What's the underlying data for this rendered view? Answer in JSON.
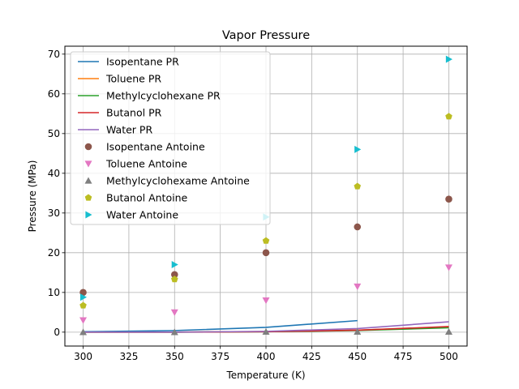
{
  "chart_data": {
    "type": "line",
    "title": "Vapor Pressure",
    "xlabel": "Temperature (K)",
    "ylabel": "Pressure (MPa)",
    "xlim": [
      290,
      510
    ],
    "ylim": [
      -3.5,
      72
    ],
    "xticks": [
      300,
      325,
      350,
      375,
      400,
      425,
      450,
      475,
      500
    ],
    "yticks": [
      0,
      10,
      20,
      30,
      40,
      50,
      60,
      70
    ],
    "grid": true,
    "legend_position": "top-left",
    "series": [
      {
        "name": "Isopentane PR",
        "kind": "line",
        "color": "#1f77b4",
        "x": [
          300,
          350,
          400,
          450
        ],
        "y": [
          0.1,
          0.4,
          1.2,
          2.9
        ]
      },
      {
        "name": "Toluene PR",
        "kind": "line",
        "color": "#ff7f0e",
        "x": [
          300,
          350,
          400,
          450,
          500
        ],
        "y": [
          0.0,
          0.0,
          0.15,
          0.5,
          1.3
        ]
      },
      {
        "name": "Methylcyclohexane PR",
        "kind": "line",
        "color": "#2ca02c",
        "x": [
          300,
          350,
          400,
          450,
          500
        ],
        "y": [
          0.0,
          0.0,
          0.1,
          0.4,
          1.1
        ]
      },
      {
        "name": "Butanol PR",
        "kind": "line",
        "color": "#d62728",
        "x": [
          300,
          350,
          400,
          450,
          500
        ],
        "y": [
          0.0,
          0.0,
          0.1,
          0.5,
          1.4
        ]
      },
      {
        "name": "Water PR",
        "kind": "line",
        "color": "#9467bd",
        "x": [
          300,
          350,
          400,
          450,
          500
        ],
        "y": [
          0.0,
          0.0,
          0.2,
          0.9,
          2.6
        ]
      },
      {
        "name": "Isopentane Antoine",
        "kind": "scatter",
        "marker": "circle",
        "color": "#8c564b",
        "x": [
          300,
          350,
          400,
          450,
          500
        ],
        "y": [
          10.0,
          14.5,
          20.0,
          26.5,
          33.5
        ]
      },
      {
        "name": "Toluene Antoine",
        "kind": "scatter",
        "marker": "triangle-down",
        "color": "#e377c2",
        "x": [
          300,
          350,
          400,
          450,
          500
        ],
        "y": [
          3.0,
          5.0,
          8.0,
          11.5,
          16.3
        ]
      },
      {
        "name": "Methylcyclohexame Antoine",
        "kind": "scatter",
        "marker": "triangle-up",
        "color": "#7f7f7f",
        "x": [
          300,
          350,
          400,
          450,
          500
        ],
        "y": [
          0.0,
          0.0,
          0.1,
          0.1,
          0.1
        ]
      },
      {
        "name": "Butanol Antoine",
        "kind": "scatter",
        "marker": "pentagon",
        "color": "#bcbd22",
        "x": [
          300,
          350,
          400,
          450,
          500
        ],
        "y": [
          6.7,
          13.3,
          23.0,
          36.7,
          54.3
        ]
      },
      {
        "name": "Water Antoine",
        "kind": "scatter",
        "marker": "triangle-right",
        "color": "#17becf",
        "x": [
          300,
          350,
          400,
          450,
          500
        ],
        "y": [
          8.8,
          17.0,
          29.0,
          46.0,
          68.7
        ]
      }
    ]
  }
}
